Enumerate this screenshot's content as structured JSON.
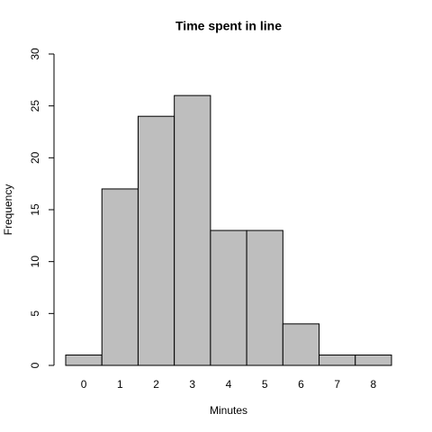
{
  "chart_data": {
    "type": "bar",
    "title": "Time spent in line",
    "x_label": "Minutes",
    "y_label": "Frequency",
    "categories": [
      "0",
      "1",
      "2",
      "3",
      "4",
      "5",
      "6",
      "7",
      "8"
    ],
    "values": [
      1,
      17,
      24,
      26,
      13,
      13,
      4,
      1,
      1
    ],
    "color": "#bebebe",
    "ylim": [
      0,
      30
    ],
    "yticks": [
      0,
      5,
      10,
      15,
      20,
      25,
      30
    ]
  }
}
